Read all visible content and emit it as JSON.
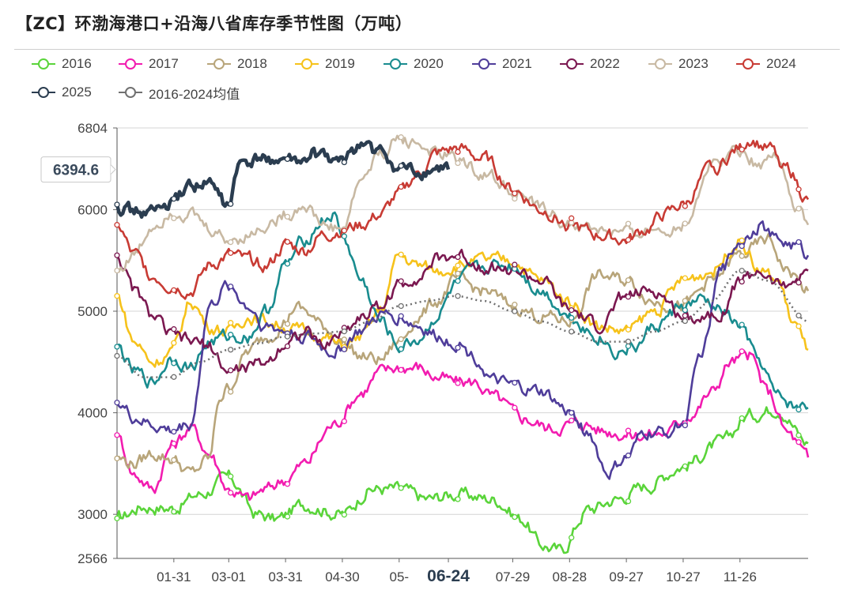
{
  "chart_data": {
    "type": "line",
    "title": "【ZC】环渤海港口+沿海八省库存季节性图（万吨）",
    "xlabel": "",
    "ylabel": "",
    "ylim": [
      2566,
      6804
    ],
    "y_ticks": [
      "6804",
      "6000",
      "5000",
      "4000",
      "3000",
      "2566"
    ],
    "y_tick_values": [
      6804,
      6000,
      5000,
      4000,
      3000,
      2566
    ],
    "x_ticks": [
      "01-31",
      "03-01",
      "03-31",
      "04-30",
      "05-",
      "06-24",
      "07-29",
      "08-28",
      "09-27",
      "10-27",
      "11-26"
    ],
    "x_tick_days": [
      31,
      60,
      90,
      120,
      150,
      176,
      210,
      240,
      270,
      300,
      330
    ],
    "x_domain_days": [
      1,
      366
    ],
    "highlight_x": "06-24",
    "highlight_y": "6394.6",
    "grid": true,
    "legend_position": "top",
    "series": [
      {
        "name": "2016",
        "color": "#5ad43a",
        "style": "solid",
        "x": [
          1,
          15,
          30,
          45,
          60,
          75,
          85,
          100,
          120,
          135,
          150,
          165,
          180,
          200,
          215,
          225,
          235,
          250,
          265,
          280,
          300,
          320,
          335,
          350,
          366
        ],
        "y": [
          2960,
          3080,
          3060,
          3200,
          3360,
          3000,
          2950,
          3100,
          3000,
          3250,
          3250,
          3150,
          3200,
          3150,
          2950,
          2700,
          2640,
          3050,
          3150,
          3280,
          3480,
          3700,
          3980,
          4050,
          3700
        ]
      },
      {
        "name": "2017",
        "color": "#f21cb0",
        "style": "solid",
        "x": [
          1,
          10,
          20,
          30,
          40,
          50,
          60,
          70,
          80,
          90,
          100,
          115,
          130,
          140,
          150,
          160,
          170,
          180,
          190,
          200,
          215,
          230,
          245,
          260,
          275,
          290,
          305,
          315,
          325,
          335,
          345,
          355,
          366
        ],
        "y": [
          3780,
          3400,
          3250,
          3680,
          3850,
          3600,
          3250,
          3150,
          3250,
          3350,
          3500,
          3880,
          4200,
          4400,
          4450,
          4450,
          4350,
          4300,
          4300,
          4150,
          3950,
          3850,
          3900,
          3820,
          3780,
          3800,
          4000,
          4200,
          4500,
          4560,
          4200,
          3800,
          3560
        ]
      },
      {
        "name": "2018",
        "color": "#b8a57a",
        "style": "solid",
        "x": [
          1,
          10,
          20,
          30,
          40,
          50,
          55,
          60,
          70,
          80,
          90,
          95,
          100,
          110,
          120,
          130,
          140,
          150,
          160,
          170,
          180,
          195,
          210,
          225,
          240,
          255,
          270,
          285,
          300,
          315,
          330,
          345,
          355,
          366
        ],
        "y": [
          3550,
          3500,
          3600,
          3550,
          3400,
          3550,
          4150,
          4250,
          4600,
          4750,
          4900,
          5050,
          5000,
          4850,
          4700,
          4550,
          4520,
          4700,
          4950,
          5100,
          5300,
          5200,
          5050,
          4950,
          4900,
          5350,
          5300,
          5100,
          5050,
          5300,
          5550,
          5700,
          5400,
          5200
        ]
      },
      {
        "name": "2019",
        "color": "#f6c21b",
        "style": "solid",
        "x": [
          1,
          10,
          20,
          30,
          40,
          50,
          60,
          70,
          80,
          90,
          100,
          110,
          120,
          130,
          140,
          150,
          160,
          170,
          180,
          195,
          210,
          225,
          240,
          255,
          270,
          285,
          300,
          315,
          330,
          340,
          350,
          358,
          366
        ],
        "y": [
          5150,
          4700,
          4500,
          4600,
          5100,
          4850,
          4800,
          4950,
          4900,
          4850,
          4800,
          4750,
          4650,
          4750,
          5000,
          5550,
          5450,
          5400,
          5450,
          5500,
          5500,
          5300,
          5100,
          4850,
          4800,
          5000,
          5300,
          5400,
          5700,
          5400,
          5300,
          4900,
          4620
        ]
      },
      {
        "name": "2020",
        "color": "#198c8f",
        "style": "solid",
        "x": [
          1,
          10,
          20,
          30,
          40,
          50,
          60,
          70,
          80,
          90,
          100,
          110,
          115,
          120,
          130,
          140,
          150,
          160,
          170,
          180,
          190,
          200,
          210,
          225,
          240,
          255,
          265,
          275,
          285,
          300,
          310,
          320,
          330,
          340,
          350,
          360,
          366
        ],
        "y": [
          4650,
          4400,
          4300,
          4550,
          4450,
          4700,
          4750,
          4750,
          5000,
          5450,
          5700,
          5900,
          5950,
          5750,
          5300,
          4900,
          4650,
          4720,
          4950,
          5250,
          5400,
          5450,
          5450,
          5200,
          4950,
          4750,
          4600,
          4650,
          4850,
          5050,
          5100,
          5000,
          4850,
          4500,
          4150,
          4050,
          4050
        ]
      },
      {
        "name": "2021",
        "color": "#4f3d9a",
        "style": "solid",
        "x": [
          1,
          10,
          20,
          30,
          40,
          50,
          60,
          70,
          80,
          90,
          100,
          115,
          130,
          140,
          150,
          160,
          170,
          180,
          190,
          200,
          210,
          225,
          240,
          250,
          260,
          270,
          280,
          290,
          300,
          310,
          320,
          330,
          340,
          350,
          360,
          366
        ],
        "y": [
          4100,
          3950,
          3870,
          3820,
          3900,
          5050,
          5250,
          5050,
          4850,
          4800,
          4750,
          4600,
          4800,
          4950,
          4950,
          4850,
          4750,
          4700,
          4550,
          4300,
          4250,
          4200,
          4000,
          3800,
          3400,
          3550,
          3800,
          3800,
          3900,
          4600,
          5400,
          5700,
          5850,
          5700,
          5650,
          5550
        ]
      },
      {
        "name": "2022",
        "color": "#7b1850",
        "style": "solid",
        "x": [
          1,
          10,
          20,
          30,
          40,
          50,
          60,
          70,
          80,
          90,
          100,
          110,
          120,
          130,
          140,
          150,
          160,
          170,
          180,
          195,
          210,
          225,
          240,
          255,
          270,
          285,
          300,
          310,
          320,
          330,
          340,
          350,
          360,
          366
        ],
        "y": [
          5550,
          5200,
          4950,
          4750,
          4700,
          4650,
          4400,
          4450,
          4500,
          4700,
          4800,
          4650,
          4800,
          4950,
          5050,
          5250,
          5350,
          5500,
          5550,
          5450,
          5400,
          5300,
          5000,
          4850,
          5150,
          5200,
          4950,
          4950,
          5000,
          5300,
          5400,
          5250,
          5300,
          5400
        ]
      },
      {
        "name": "2023",
        "color": "#c8b9a3",
        "style": "solid",
        "x": [
          1,
          10,
          20,
          30,
          40,
          50,
          60,
          70,
          80,
          90,
          100,
          110,
          120,
          130,
          140,
          150,
          160,
          170,
          180,
          195,
          210,
          225,
          240,
          255,
          270,
          285,
          300,
          315,
          330,
          340,
          350,
          360,
          366
        ],
        "y": [
          5400,
          5550,
          5850,
          6000,
          5950,
          5800,
          5700,
          5750,
          5850,
          5950,
          6050,
          5850,
          5800,
          6300,
          6550,
          6700,
          6650,
          6550,
          6500,
          6350,
          6200,
          6000,
          5850,
          5800,
          5750,
          5800,
          5850,
          6450,
          6600,
          6450,
          6550,
          6000,
          5850
        ]
      },
      {
        "name": "2024",
        "color": "#c83b34",
        "style": "solid",
        "x": [
          1,
          10,
          20,
          30,
          40,
          50,
          60,
          70,
          80,
          90,
          100,
          110,
          120,
          130,
          140,
          150,
          160,
          170,
          180,
          195,
          210,
          225,
          240,
          255,
          270,
          280,
          290,
          300,
          315,
          330,
          335,
          345,
          355,
          366
        ],
        "y": [
          5850,
          5550,
          5350,
          5250,
          5200,
          5450,
          5550,
          5500,
          5450,
          5650,
          5600,
          5750,
          5800,
          5850,
          5950,
          6150,
          6350,
          6550,
          6600,
          6500,
          6200,
          6000,
          5850,
          5750,
          5700,
          5800,
          5950,
          6050,
          6400,
          6600,
          6700,
          6600,
          6400,
          6100
        ]
      },
      {
        "name": "2025",
        "color": "#2b3d50",
        "style": "solid",
        "bold": true,
        "x": [
          1,
          10,
          20,
          30,
          40,
          50,
          60,
          65,
          70,
          80,
          90,
          100,
          105,
          110,
          120,
          125,
          130,
          140,
          150,
          160,
          170,
          176
        ],
        "y": [
          6050,
          5980,
          5980,
          6050,
          6250,
          6250,
          6030,
          6420,
          6450,
          6500,
          6480,
          6450,
          6550,
          6500,
          6450,
          6600,
          6650,
          6550,
          6400,
          6350,
          6380,
          6394.6
        ]
      },
      {
        "name": "2016-2024均值",
        "color": "#707070",
        "style": "dotted",
        "x": [
          1,
          15,
          30,
          45,
          60,
          75,
          90,
          105,
          120,
          135,
          150,
          165,
          180,
          195,
          210,
          225,
          240,
          255,
          270,
          285,
          300,
          315,
          330,
          345,
          366
        ],
        "y": [
          4560,
          4350,
          4350,
          4500,
          4620,
          4680,
          4750,
          4780,
          4800,
          4900,
          5050,
          5100,
          5150,
          5100,
          5000,
          4900,
          4800,
          4700,
          4700,
          4800,
          4900,
          5100,
          5400,
          5300,
          4900
        ]
      }
    ]
  }
}
